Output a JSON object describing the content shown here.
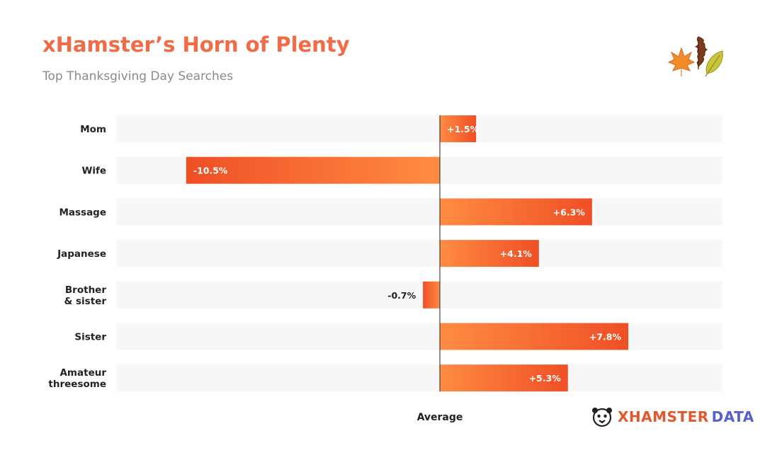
{
  "header": {
    "title": "xHamster’s Horn of Plenty",
    "subtitle": "Top Thanksgiving Day Searches"
  },
  "colors": {
    "title": "#f26b47",
    "bar_light": "#ff8c42",
    "bar_dark": "#ef4f26",
    "track": "#f7f7f7",
    "axis": "#222222",
    "brand_orange": "#e4572e",
    "brand_purple": "#5a5fcf"
  },
  "decoration": {
    "icon": "autumn-leaves-icon"
  },
  "chart_data": {
    "type": "bar",
    "orientation": "horizontal",
    "categories": [
      [
        "Mom"
      ],
      [
        "Wife"
      ],
      [
        "Massage"
      ],
      [
        "Japanese"
      ],
      [
        "Brother",
        "& sister"
      ],
      [
        "Sister"
      ],
      [
        "Amateur",
        "threesome"
      ]
    ],
    "values": [
      1.5,
      -10.5,
      6.3,
      4.1,
      -0.7,
      7.8,
      5.3
    ],
    "value_labels": [
      "+1.5%",
      "-10.5%",
      "+6.3%",
      "+4.1%",
      "-0.7%",
      "+7.8%",
      "+5.3%"
    ],
    "unit": "%",
    "xlim": [
      -13.4,
      11.7
    ],
    "baseline": 0,
    "baseline_label": "Average",
    "grid": false,
    "legend": "none"
  },
  "footer": {
    "brand_left": "XHAMSTER",
    "brand_right": "DATA",
    "logo_icon": "hamster-logo-icon"
  }
}
